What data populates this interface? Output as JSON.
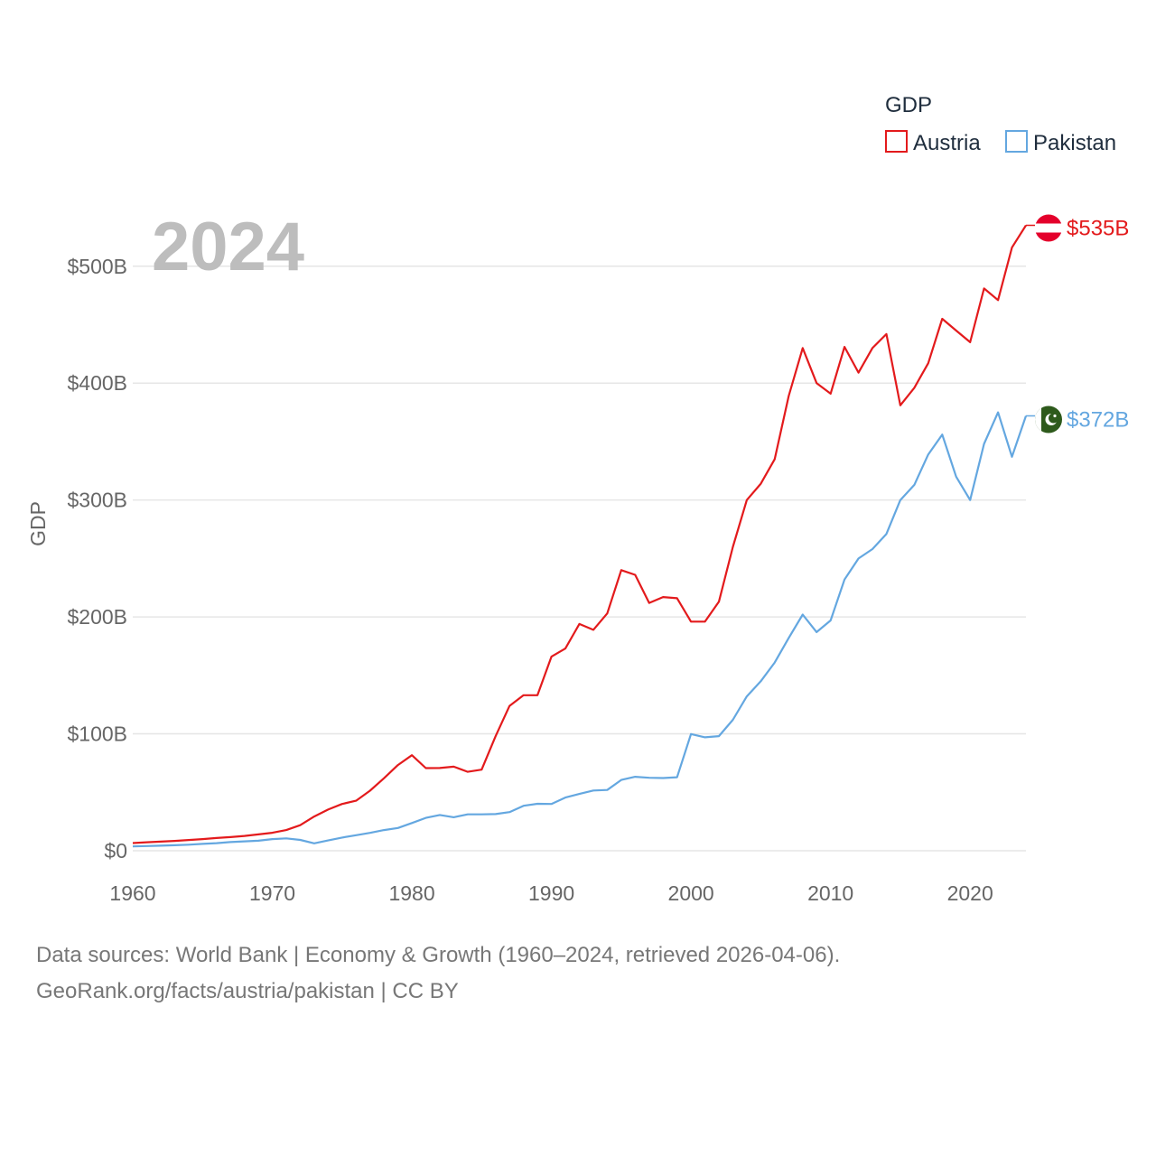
{
  "chart_data": {
    "type": "line",
    "title": "",
    "year_label": "2024",
    "xlabel": "",
    "ylabel": "GDP",
    "legend_title": "GDP",
    "xlim": [
      1960,
      2024
    ],
    "ylim": [
      0,
      535
    ],
    "x_ticks": [
      1960,
      1970,
      1980,
      1990,
      2000,
      2010,
      2020
    ],
    "y_ticks": [
      0,
      100,
      200,
      300,
      400,
      500
    ],
    "y_tick_labels": [
      "$0",
      "$100B",
      "$200B",
      "$300B",
      "$400B",
      "$500B"
    ],
    "grid": true,
    "legend_position": "top-right",
    "x": [
      1960,
      1961,
      1962,
      1963,
      1964,
      1965,
      1966,
      1967,
      1968,
      1969,
      1970,
      1971,
      1972,
      1973,
      1974,
      1975,
      1976,
      1977,
      1978,
      1979,
      1980,
      1981,
      1982,
      1983,
      1984,
      1985,
      1986,
      1987,
      1988,
      1989,
      1990,
      1991,
      1992,
      1993,
      1994,
      1995,
      1996,
      1997,
      1998,
      1999,
      2000,
      2001,
      2002,
      2003,
      2004,
      2005,
      2006,
      2007,
      2008,
      2009,
      2010,
      2011,
      2012,
      2013,
      2014,
      2015,
      2016,
      2017,
      2018,
      2019,
      2020,
      2021,
      2022,
      2023,
      2024
    ],
    "series": [
      {
        "name": "Austria",
        "color": "#e31a1c",
        "end_label": "$535B",
        "flag": "austria-flag",
        "values": [
          6.6,
          7.3,
          7.8,
          8.4,
          9.2,
          10.0,
          10.9,
          11.7,
          12.7,
          14.0,
          15.4,
          17.7,
          21.9,
          29.3,
          35.2,
          40.0,
          42.8,
          51.4,
          62.0,
          73.3,
          81.7,
          70.7,
          70.8,
          71.9,
          67.5,
          69.4,
          98.0,
          123.9,
          133.0,
          133.0,
          166.0,
          173.0,
          194.0,
          189.0,
          203.0,
          240.0,
          236.0,
          212.0,
          217.0,
          216.0,
          196.0,
          196.0,
          213.0,
          260.0,
          300.0,
          314.0,
          335.0,
          389.0,
          430.0,
          400.0,
          391.0,
          431.0,
          409.0,
          430.0,
          442.0,
          381.0,
          396.0,
          417.0,
          455.0,
          445.0,
          435.0,
          481.0,
          471.0,
          516.0,
          535.0
        ]
      },
      {
        "name": "Pakistan",
        "color": "#64a7e0",
        "end_label": "$372B",
        "flag": "pakistan-flag",
        "values": [
          3.7,
          4.0,
          4.3,
          4.7,
          5.2,
          5.9,
          6.5,
          7.4,
          8.0,
          8.6,
          10.0,
          10.6,
          9.3,
          6.3,
          8.8,
          11.3,
          13.3,
          15.3,
          17.7,
          19.5,
          23.7,
          28.1,
          30.6,
          28.7,
          31.1,
          31.1,
          31.4,
          33.1,
          38.5,
          40.2,
          40.0,
          45.5,
          48.6,
          51.5,
          52.0,
          60.6,
          63.3,
          62.4,
          62.2,
          62.9,
          99.8,
          97.0,
          98.0,
          112.0,
          132.0,
          145.0,
          161.0,
          182.0,
          202.0,
          187.0,
          197.0,
          232.0,
          250.0,
          258.0,
          271.0,
          300.0,
          313.0,
          339.0,
          356.0,
          320.0,
          300.0,
          348.0,
          375.0,
          337.0,
          372.0
        ]
      }
    ]
  },
  "footer": {
    "line1": "Data sources: World Bank | Economy & Growth (1960–2024, retrieved 2026-04-06).",
    "line2": "GeoRank.org/facts/austria/pakistan | CC BY"
  }
}
